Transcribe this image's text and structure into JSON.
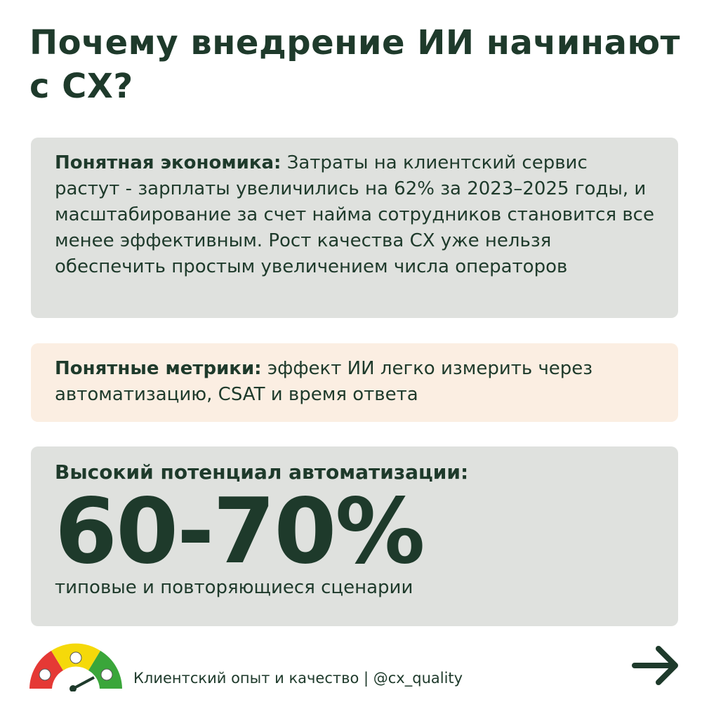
{
  "header": {
    "title": "Почему внедрение ИИ начинают с СХ?"
  },
  "cards": [
    {
      "lead": "Понятная экономика:",
      "text": "Затраты на клиентский сервис растут - зарплаты увеличились на 62% за 2023–2025 годы, и масштабирование за счет найма сотрудников становится все менее эффективным. Рост качества СХ уже нельзя обеспечить простым увеличением числа операторов"
    },
    {
      "lead": "Понятные метрики:",
      "text": "эффект ИИ легко измерить через автоматизацию, CSAT и время ответа"
    }
  ],
  "highlight": {
    "lead": "Высокий потенциал автоматизации:",
    "value": "60-70%",
    "caption": "типовые и повторяющиеся сценарии"
  },
  "footer": {
    "text": "Клиентский опыт и качество | @cx_quality"
  }
}
